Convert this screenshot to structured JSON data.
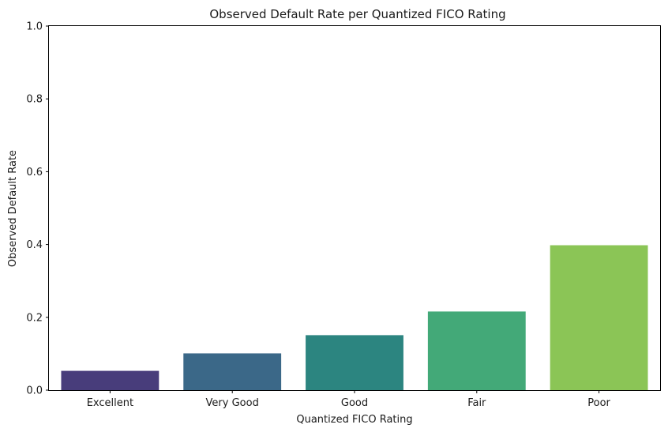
{
  "chart_data": {
    "type": "bar",
    "title": "Observed Default Rate per Quantized FICO Rating",
    "xlabel": "Quantized FICO Rating",
    "ylabel": "Observed Default Rate",
    "categories": [
      "Excellent",
      "Very Good",
      "Good",
      "Fair",
      "Poor"
    ],
    "values": [
      0.053,
      0.101,
      0.151,
      0.216,
      0.398
    ],
    "ylim": [
      0,
      1
    ],
    "yticks": [
      0.0,
      0.2,
      0.4,
      0.6,
      0.8,
      1.0
    ],
    "ytick_labels": [
      "0.0",
      "0.2",
      "0.4",
      "0.6",
      "0.8",
      "1.0"
    ],
    "colors": [
      "#483d7b",
      "#3b6888",
      "#2c8580",
      "#43a978",
      "#8bc556"
    ],
    "grid": false,
    "legend": "none"
  }
}
